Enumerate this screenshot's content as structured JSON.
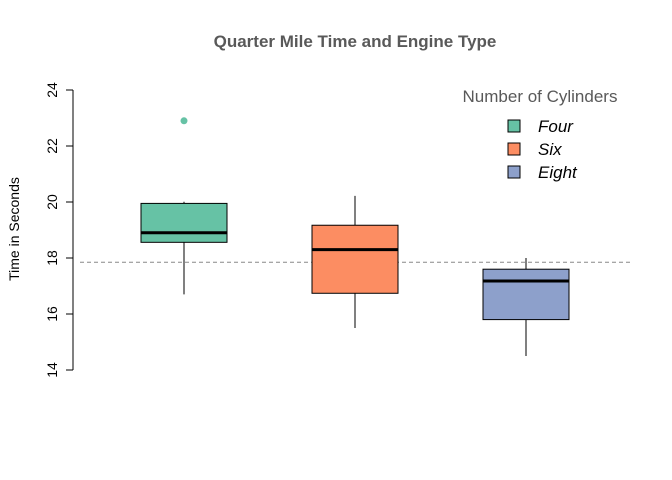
{
  "chart_data": {
    "type": "box",
    "title": "Quarter Mile Time and Engine Type",
    "xlabel": "",
    "ylabel": "Time in Seconds",
    "ylim": [
      14,
      24
    ],
    "yticks": [
      "14",
      "16",
      "18",
      "20",
      "22",
      "24"
    ],
    "grid": false,
    "reference_line": {
      "y": 17.85,
      "style": "dashed",
      "color": "#888888"
    },
    "legend": {
      "title": "Number of Cylinders",
      "placement": "top-right",
      "entries": [
        "Four",
        "Six",
        "Eight"
      ]
    },
    "series": [
      {
        "name": "Four",
        "color": "#66C2A5",
        "whisker_low": 16.7,
        "q1": 18.56,
        "median": 18.9,
        "q3": 19.95,
        "whisker_high": 20.01,
        "outliers": [
          22.9
        ]
      },
      {
        "name": "Six",
        "color": "#FC8D62",
        "whisker_low": 15.5,
        "q1": 16.74,
        "median": 18.3,
        "q3": 19.17,
        "whisker_high": 20.22,
        "outliers": []
      },
      {
        "name": "Eight",
        "color": "#8DA0CB",
        "whisker_low": 14.5,
        "q1": 15.8,
        "median": 17.18,
        "q3": 17.6,
        "whisker_high": 18.0,
        "outliers": []
      }
    ]
  }
}
